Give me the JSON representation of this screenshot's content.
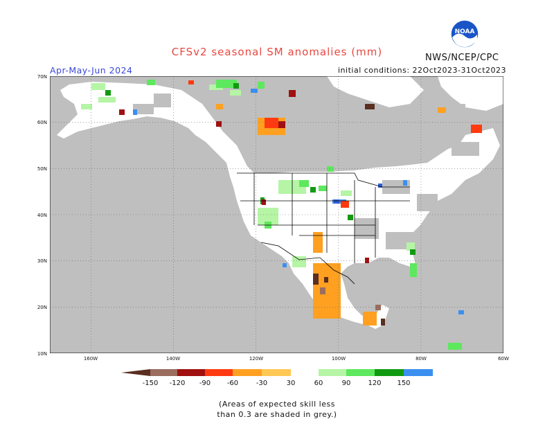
{
  "title": "CFSv2 seasonal SM anomalies (mm)",
  "agency": "NWS/NCEP/CPC",
  "logo_text": "NOAA",
  "season": "Apr-May-Jun 2024",
  "initial_conditions": "initial conditions: 22Oct2023-31Oct2023",
  "lat_ticks": [
    "70N",
    "60N",
    "50N",
    "40N",
    "30N",
    "20N",
    "10N"
  ],
  "lon_ticks": [
    "160W",
    "140W",
    "120W",
    "100W",
    "80W",
    "60W"
  ],
  "colorbar": {
    "labels": [
      "-150",
      "-120",
      "-90",
      "-60",
      "-30",
      "30",
      "60",
      "90",
      "120",
      "150"
    ],
    "colors": [
      "#5a2e20",
      "#9a6d5f",
      "#a01010",
      "#ff3a10",
      "#ffa020",
      "#ffc855",
      "#ffffff",
      "#b5f5a5",
      "#5de85d",
      "#119a11",
      "#3b8ff0",
      "#2f5ed8"
    ]
  },
  "note_line1": "(Areas of expected skill less",
  "note_line2": "than 0.3 are shaded in grey.)",
  "colors": {
    "grey_mask": "#bfbfbf",
    "title": "#e8483f",
    "season": "#3848d8"
  }
}
